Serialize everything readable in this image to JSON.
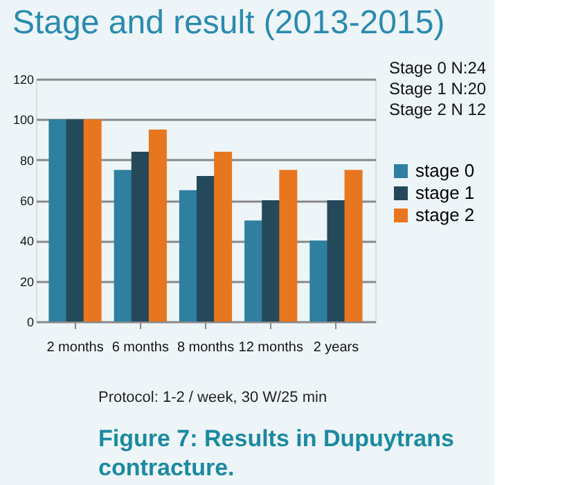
{
  "chart_data": {
    "type": "bar",
    "title": "Stage and result (2013-2015)",
    "categories": [
      "2 months",
      "6 months",
      "8 months",
      "12 months",
      "2 years"
    ],
    "series": [
      {
        "name": "stage 0",
        "color": "#2e7fa0",
        "values": [
          100,
          75,
          65,
          50,
          40
        ]
      },
      {
        "name": "stage 1",
        "color": "#24495a",
        "values": [
          100,
          84,
          72,
          60,
          60
        ]
      },
      {
        "name": "stage 2",
        "color": "#e8761e",
        "values": [
          100,
          95,
          84,
          75,
          75
        ]
      }
    ],
    "ylim": [
      0,
      120
    ],
    "yticks": [
      0,
      20,
      40,
      60,
      80,
      100,
      120
    ],
    "grid": "y",
    "legend": "right",
    "annotations": [
      "Stage 0 N:24",
      "Stage 1 N:20",
      "Stage 2 N 12",
      "Protocol: 1-2 / week, 30 W/25 min",
      "Figure 7: Results in Dupuytrans contracture."
    ]
  }
}
